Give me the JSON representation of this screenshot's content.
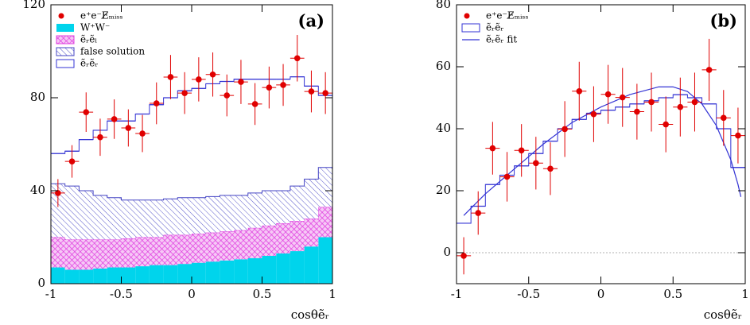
{
  "chart_data": [
    {
      "type": "histogram",
      "title": "(a)",
      "xlabel": "cosθẽᵣ",
      "stacked": true,
      "bins": [
        -1,
        -0.9,
        -0.8,
        -0.7,
        -0.6,
        -0.5,
        -0.4,
        -0.3,
        -0.2,
        -0.1,
        0,
        0.1,
        0.2,
        0.3,
        0.4,
        0.5,
        0.6,
        0.7,
        0.8,
        0.9,
        1
      ],
      "xlim": [
        -1,
        1
      ],
      "ylim": [
        0,
        120
      ],
      "xticks": [
        -1,
        -0.5,
        0,
        0.5,
        1
      ],
      "yticks": [
        0,
        40,
        80,
        120
      ],
      "series": [
        {
          "name": "W⁺W⁻",
          "color": "#00d4ec",
          "style": "fill",
          "values": [
            7,
            6,
            6,
            6.5,
            7,
            7,
            7.5,
            8,
            8,
            8.5,
            9,
            9.5,
            10,
            10.5,
            11,
            12,
            13,
            14,
            16,
            20
          ]
        },
        {
          "name": "ẽᵣẽₗ",
          "color": "#e040e0",
          "style": "hatch",
          "values": [
            13,
            13,
            13,
            12.5,
            12,
            12.5,
            12.5,
            12,
            13,
            12.5,
            12.5,
            12.5,
            12.5,
            12.5,
            13,
            13,
            13,
            13,
            12,
            13
          ]
        },
        {
          "name": "false solution",
          "color": "#4444c4",
          "style": "hatch",
          "values": [
            23,
            23,
            21,
            19,
            18,
            16.5,
            16,
            16,
            15.5,
            16,
            15.5,
            15.5,
            15.5,
            15,
            15,
            15,
            14,
            15,
            17,
            17
          ]
        },
        {
          "name": "ẽᵣẽᵣ",
          "color": "#3333d4",
          "style": "outline",
          "values": [
            13,
            15,
            22,
            28,
            33,
            34,
            37,
            41,
            43.5,
            46,
            47,
            48.5,
            49,
            50,
            49,
            48,
            48,
            47,
            40,
            31
          ]
        }
      ],
      "points": {
        "name": "e⁺e⁻E̸ₘᵢₛₛ",
        "color": "#e00000",
        "x": [
          -0.95,
          -0.85,
          -0.75,
          -0.65,
          -0.55,
          -0.45,
          -0.35,
          -0.25,
          -0.15,
          -0.05,
          0.05,
          0.15,
          0.25,
          0.35,
          0.45,
          0.55,
          0.65,
          0.75,
          0.85,
          0.95
        ],
        "values": [
          39,
          52.6,
          73.8,
          63,
          70.8,
          67,
          64.6,
          77.6,
          88.9,
          82,
          87.9,
          90,
          81,
          86.8,
          77.3,
          84.4,
          85.5,
          97,
          82.7,
          82
        ],
        "errors": [
          6,
          7,
          8.5,
          8,
          8.5,
          8,
          8,
          9,
          9.5,
          9,
          9.5,
          9.5,
          9,
          9.5,
          9,
          9,
          9,
          10,
          9,
          9
        ]
      }
    },
    {
      "type": "histogram",
      "title": "(b)",
      "xlabel": "cosθẽᵣ",
      "stacked": false,
      "bins": [
        -1,
        -0.9,
        -0.8,
        -0.7,
        -0.6,
        -0.5,
        -0.4,
        -0.3,
        -0.2,
        -0.1,
        0,
        0.1,
        0.2,
        0.3,
        0.4,
        0.5,
        0.6,
        0.7,
        0.8,
        0.9,
        1
      ],
      "xlim": [
        -1,
        1
      ],
      "ylim": [
        -10,
        80
      ],
      "xticks": [
        -1,
        -0.5,
        0,
        0.5,
        1
      ],
      "yticks": [
        0,
        20,
        40,
        60,
        80
      ],
      "series": [
        {
          "name": "ẽᵣẽᵣ",
          "color": "#3333d4",
          "style": "outline",
          "values": [
            9.5,
            15,
            22,
            25,
            28,
            32,
            36,
            40,
            43,
            45,
            46,
            47,
            48,
            49,
            50,
            51,
            50,
            48,
            40,
            27.5
          ]
        }
      ],
      "fit": {
        "name": "ẽᵣẽᵣ fit",
        "color": "#3333d4",
        "x": [
          -0.95,
          -0.8,
          -0.6,
          -0.4,
          -0.2,
          0,
          0.2,
          0.4,
          0.5,
          0.6,
          0.7,
          0.8,
          0.9,
          0.95,
          0.97
        ],
        "values": [
          12,
          19,
          27,
          35,
          42,
          47,
          51,
          53.5,
          53.5,
          52,
          48,
          41,
          30,
          22,
          18
        ]
      },
      "points": {
        "name": "e⁺e⁻E̸ₘᵢₛₛ",
        "color": "#e00000",
        "x": [
          -0.95,
          -0.85,
          -0.75,
          -0.65,
          -0.55,
          -0.45,
          -0.35,
          -0.25,
          -0.15,
          -0.05,
          0.05,
          0.15,
          0.25,
          0.35,
          0.45,
          0.55,
          0.65,
          0.75,
          0.85,
          0.95
        ],
        "values": [
          -1,
          12.8,
          33.7,
          24.5,
          33,
          28.9,
          27.1,
          39.9,
          52.1,
          44.7,
          51.1,
          50.1,
          45.5,
          48.6,
          41.4,
          47,
          48.6,
          59,
          43.5,
          37.8
        ],
        "errors": [
          6,
          7,
          8.5,
          8,
          8.5,
          8.5,
          8.5,
          9,
          9.5,
          9,
          9.5,
          9.5,
          9,
          9.5,
          9,
          9.5,
          9.5,
          10,
          9,
          9
        ]
      }
    }
  ]
}
